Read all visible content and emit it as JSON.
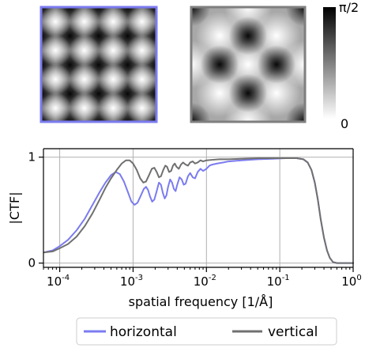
{
  "chart_data": [
    {
      "type": "heatmap",
      "panel": "horizontal-phase-pattern",
      "description_units": "phase",
      "grid": "checkerboard of bright and dark spots (4 x 4 periods)",
      "frame_color": "#7b7bf0"
    },
    {
      "type": "heatmap",
      "panel": "vertical-phase-pattern",
      "description_units": "phase",
      "grid": "diagonal lattice of dark spots (2 x 2 periods)",
      "frame_color": "#7f7f7f"
    },
    {
      "type": "colorbar",
      "range": [
        0,
        1.5708
      ],
      "max_label": "π/2",
      "min_label": "0",
      "colors": {
        "top": "#000000",
        "bottom": "#ffffff"
      }
    },
    {
      "type": "line",
      "xlabel": "spatial frequency [1/Å]",
      "ylabel": "|CTF|",
      "xscale": "log",
      "xlim": [
        6e-05,
        1.0
      ],
      "ylim": [
        -0.04,
        1.08
      ],
      "grid": true,
      "x_ticks": [
        {
          "value": 0.0001,
          "base": "10",
          "exp": "-4"
        },
        {
          "value": 0.001,
          "base": "10",
          "exp": "-3"
        },
        {
          "value": 0.01,
          "base": "10",
          "exp": "-2"
        },
        {
          "value": 0.1,
          "base": "10",
          "exp": "-1"
        },
        {
          "value": 1.0,
          "base": "10",
          "exp": "0"
        }
      ],
      "y_ticks": [
        {
          "value": 0,
          "label": "0"
        },
        {
          "value": 1,
          "label": "1"
        }
      ],
      "legend_position": "bottom",
      "series": [
        {
          "name": "horizontal",
          "color": "#7b7bf0",
          "points": [
            [
              6e-05,
              0.1
            ],
            [
              8e-05,
              0.12
            ],
            [
              0.0001,
              0.16
            ],
            [
              0.00013,
              0.22
            ],
            [
              0.00017,
              0.31
            ],
            [
              0.00022,
              0.42
            ],
            [
              0.00028,
              0.55
            ],
            [
              0.00035,
              0.67
            ],
            [
              0.00042,
              0.76
            ],
            [
              0.0005,
              0.83
            ],
            [
              0.00058,
              0.86
            ],
            [
              0.00066,
              0.84
            ],
            [
              0.00075,
              0.77
            ],
            [
              0.00085,
              0.67
            ],
            [
              0.00095,
              0.58
            ],
            [
              0.00105,
              0.55
            ],
            [
              0.00115,
              0.57
            ],
            [
              0.00128,
              0.64
            ],
            [
              0.0014,
              0.7
            ],
            [
              0.0015,
              0.72
            ],
            [
              0.0016,
              0.69
            ],
            [
              0.0017,
              0.63
            ],
            [
              0.00182,
              0.58
            ],
            [
              0.00195,
              0.6
            ],
            [
              0.0021,
              0.68
            ],
            [
              0.00225,
              0.76
            ],
            [
              0.0024,
              0.74
            ],
            [
              0.00255,
              0.66
            ],
            [
              0.0027,
              0.61
            ],
            [
              0.00285,
              0.64
            ],
            [
              0.003,
              0.72
            ],
            [
              0.0032,
              0.79
            ],
            [
              0.0034,
              0.76
            ],
            [
              0.0036,
              0.7
            ],
            [
              0.0038,
              0.68
            ],
            [
              0.004,
              0.74
            ],
            [
              0.0043,
              0.81
            ],
            [
              0.0046,
              0.79
            ],
            [
              0.0049,
              0.74
            ],
            [
              0.0052,
              0.75
            ],
            [
              0.0056,
              0.82
            ],
            [
              0.006,
              0.85
            ],
            [
              0.0065,
              0.81
            ],
            [
              0.007,
              0.8
            ],
            [
              0.0076,
              0.86
            ],
            [
              0.0083,
              0.89
            ],
            [
              0.009,
              0.87
            ],
            [
              0.01,
              0.89
            ],
            [
              0.011,
              0.92
            ],
            [
              0.012,
              0.93
            ],
            [
              0.014,
              0.94
            ],
            [
              0.017,
              0.95
            ],
            [
              0.02,
              0.96
            ],
            [
              0.03,
              0.97
            ],
            [
              0.05,
              0.98
            ],
            [
              0.08,
              0.985
            ],
            [
              0.12,
              0.99
            ],
            [
              0.17,
              0.99
            ],
            [
              0.21,
              0.98
            ],
            [
              0.24,
              0.95
            ],
            [
              0.27,
              0.88
            ],
            [
              0.3,
              0.76
            ],
            [
              0.33,
              0.6
            ],
            [
              0.36,
              0.42
            ],
            [
              0.4,
              0.24
            ],
            [
              0.44,
              0.12
            ],
            [
              0.48,
              0.05
            ],
            [
              0.53,
              0.01
            ],
            [
              0.6,
              0.0
            ],
            [
              0.75,
              0.0
            ],
            [
              1.0,
              0.0
            ]
          ]
        },
        {
          "name": "vertical",
          "color": "#707070",
          "points": [
            [
              6e-05,
              0.1
            ],
            [
              8e-05,
              0.11
            ],
            [
              0.0001,
              0.14
            ],
            [
              0.00013,
              0.18
            ],
            [
              0.00017,
              0.25
            ],
            [
              0.00022,
              0.35
            ],
            [
              0.00028,
              0.47
            ],
            [
              0.00035,
              0.6
            ],
            [
              0.00042,
              0.71
            ],
            [
              0.0005,
              0.8
            ],
            [
              0.0006,
              0.88
            ],
            [
              0.0007,
              0.94
            ],
            [
              0.0008,
              0.97
            ],
            [
              0.0009,
              0.97
            ],
            [
              0.001,
              0.94
            ],
            [
              0.00112,
              0.88
            ],
            [
              0.00125,
              0.8
            ],
            [
              0.00138,
              0.76
            ],
            [
              0.0015,
              0.77
            ],
            [
              0.00165,
              0.83
            ],
            [
              0.0018,
              0.89
            ],
            [
              0.00195,
              0.9
            ],
            [
              0.0021,
              0.86
            ],
            [
              0.00225,
              0.81
            ],
            [
              0.0024,
              0.82
            ],
            [
              0.00258,
              0.88
            ],
            [
              0.00275,
              0.92
            ],
            [
              0.0029,
              0.91
            ],
            [
              0.0031,
              0.86
            ],
            [
              0.0033,
              0.87
            ],
            [
              0.0035,
              0.92
            ],
            [
              0.0037,
              0.94
            ],
            [
              0.0039,
              0.91
            ],
            [
              0.0042,
              0.89
            ],
            [
              0.0045,
              0.93
            ],
            [
              0.0048,
              0.95
            ],
            [
              0.0052,
              0.93
            ],
            [
              0.0056,
              0.92
            ],
            [
              0.006,
              0.95
            ],
            [
              0.0065,
              0.96
            ],
            [
              0.007,
              0.94
            ],
            [
              0.0076,
              0.95
            ],
            [
              0.0083,
              0.97
            ],
            [
              0.009,
              0.96
            ],
            [
              0.01,
              0.97
            ],
            [
              0.012,
              0.975
            ],
            [
              0.015,
              0.98
            ],
            [
              0.02,
              0.98
            ],
            [
              0.03,
              0.985
            ],
            [
              0.05,
              0.99
            ],
            [
              0.08,
              0.99
            ],
            [
              0.12,
              0.99
            ],
            [
              0.17,
              0.99
            ],
            [
              0.21,
              0.98
            ],
            [
              0.24,
              0.95
            ],
            [
              0.27,
              0.88
            ],
            [
              0.3,
              0.76
            ],
            [
              0.33,
              0.6
            ],
            [
              0.36,
              0.42
            ],
            [
              0.4,
              0.24
            ],
            [
              0.44,
              0.12
            ],
            [
              0.48,
              0.05
            ],
            [
              0.53,
              0.01
            ],
            [
              0.6,
              0.0
            ],
            [
              0.75,
              0.0
            ],
            [
              1.0,
              0.0
            ]
          ]
        }
      ]
    }
  ],
  "legend": {
    "items": [
      {
        "label": "horizontal",
        "color": "#7b7bf0"
      },
      {
        "label": "vertical",
        "color": "#707070"
      }
    ]
  }
}
